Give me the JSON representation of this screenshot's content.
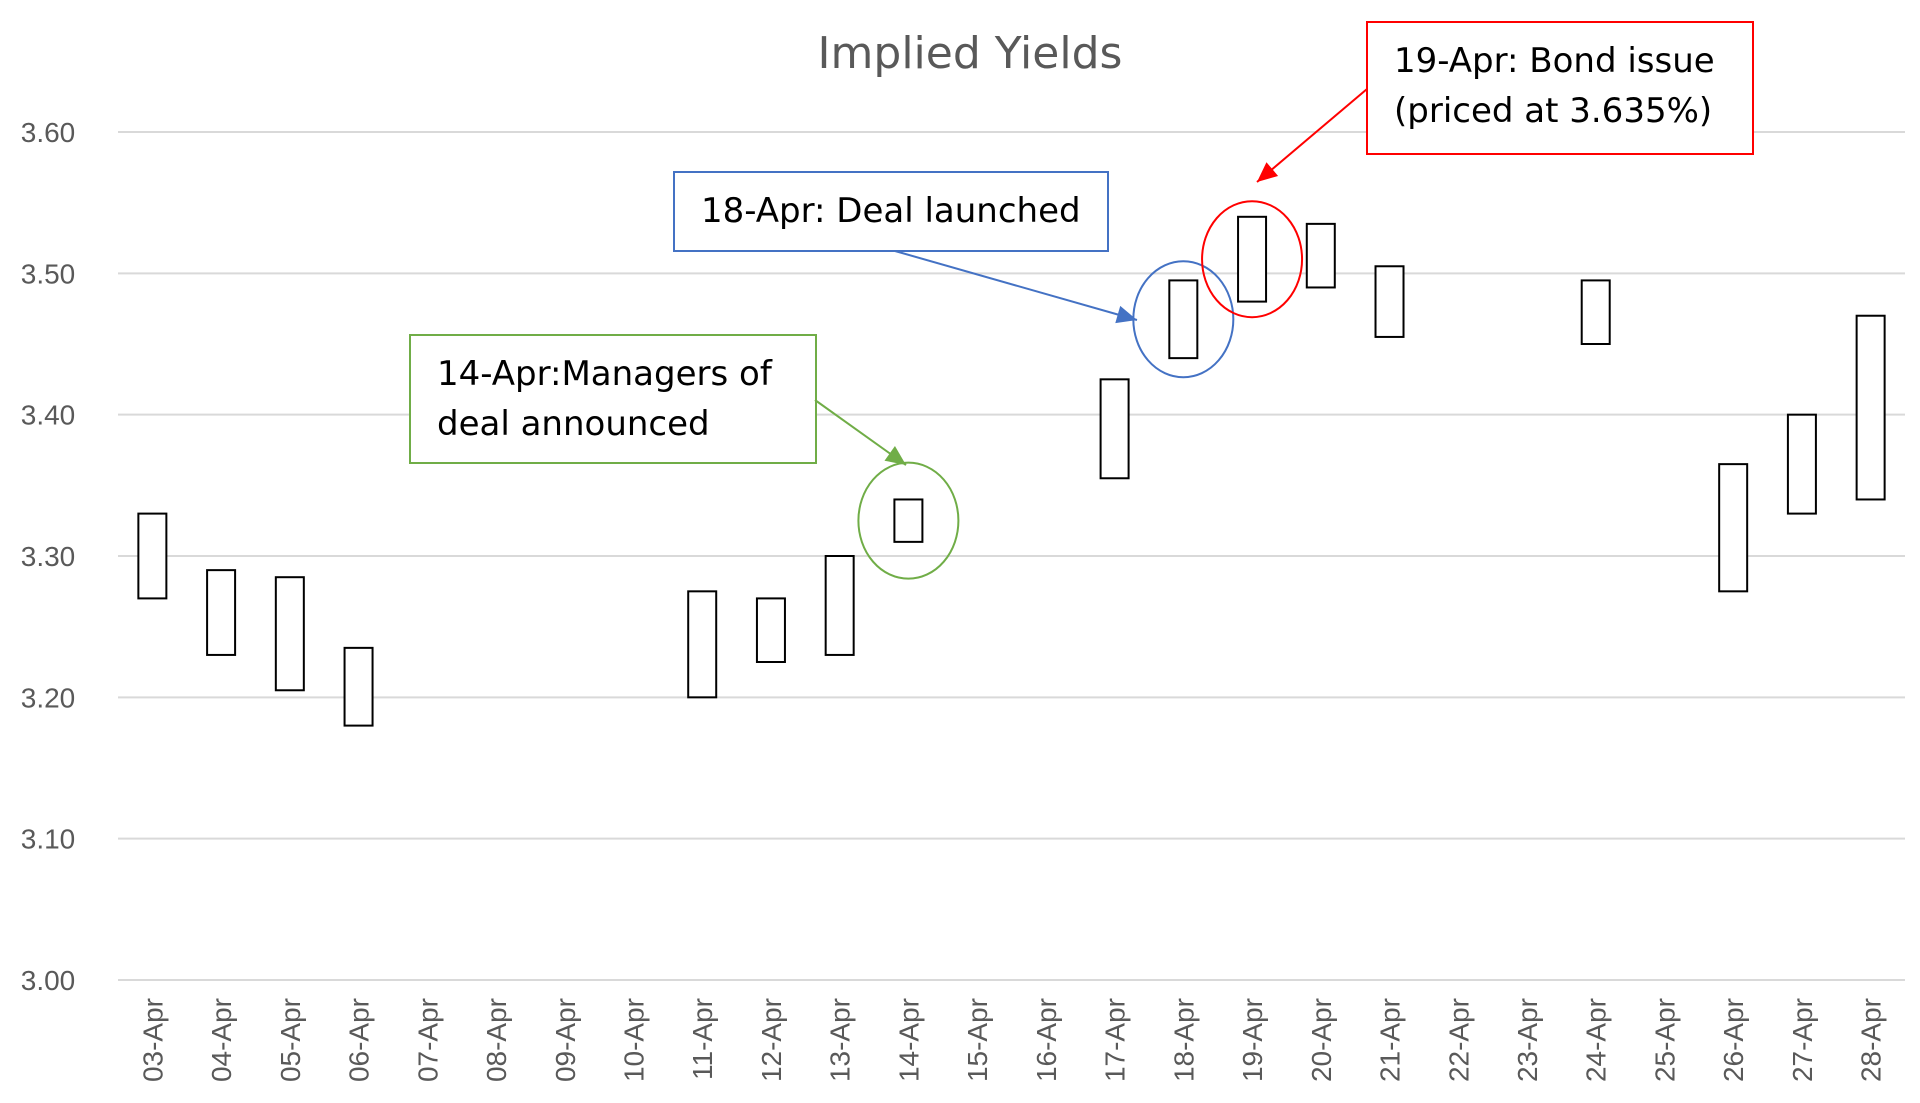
{
  "chart_data": {
    "type": "bar",
    "subtype": "floating-range",
    "title": "Implied Yields",
    "xlabel": "",
    "ylabel": "",
    "ylim": [
      3.0,
      3.6
    ],
    "yticks": [
      "3.00",
      "3.10",
      "3.20",
      "3.30",
      "3.40",
      "3.50",
      "3.60"
    ],
    "grid": true,
    "legend": "none",
    "categories": [
      "03-Apr",
      "04-Apr",
      "05-Apr",
      "06-Apr",
      "07-Apr",
      "08-Apr",
      "09-Apr",
      "10-Apr",
      "11-Apr",
      "12-Apr",
      "13-Apr",
      "14-Apr",
      "15-Apr",
      "16-Apr",
      "17-Apr",
      "18-Apr",
      "19-Apr",
      "20-Apr",
      "21-Apr",
      "22-Apr",
      "23-Apr",
      "24-Apr",
      "25-Apr",
      "26-Apr",
      "27-Apr",
      "28-Apr"
    ],
    "ranges": [
      [
        3.27,
        3.33
      ],
      [
        3.23,
        3.29
      ],
      [
        3.205,
        3.285
      ],
      [
        3.18,
        3.235
      ],
      null,
      null,
      null,
      null,
      [
        3.2,
        3.275
      ],
      [
        3.225,
        3.27
      ],
      [
        3.23,
        3.3
      ],
      [
        3.31,
        3.34
      ],
      null,
      null,
      [
        3.355,
        3.425
      ],
      [
        3.44,
        3.495
      ],
      [
        3.48,
        3.54
      ],
      [
        3.49,
        3.535
      ],
      [
        3.455,
        3.505
      ],
      null,
      null,
      [
        3.45,
        3.495
      ],
      null,
      [
        3.275,
        3.365
      ],
      [
        3.33,
        3.4
      ],
      [
        3.34,
        3.47
      ]
    ],
    "annotations": [
      {
        "lines": [
          "14-Apr:Managers of",
          "deal announced"
        ],
        "category": "14-Apr",
        "color": "#70ad47"
      },
      {
        "lines": [
          "18-Apr: Deal launched"
        ],
        "category": "18-Apr",
        "color": "#4472c4"
      },
      {
        "lines": [
          "19-Apr: Bond issue",
          "(priced at 3.635%)"
        ],
        "category": "19-Apr",
        "color": "#ff0000"
      }
    ]
  }
}
